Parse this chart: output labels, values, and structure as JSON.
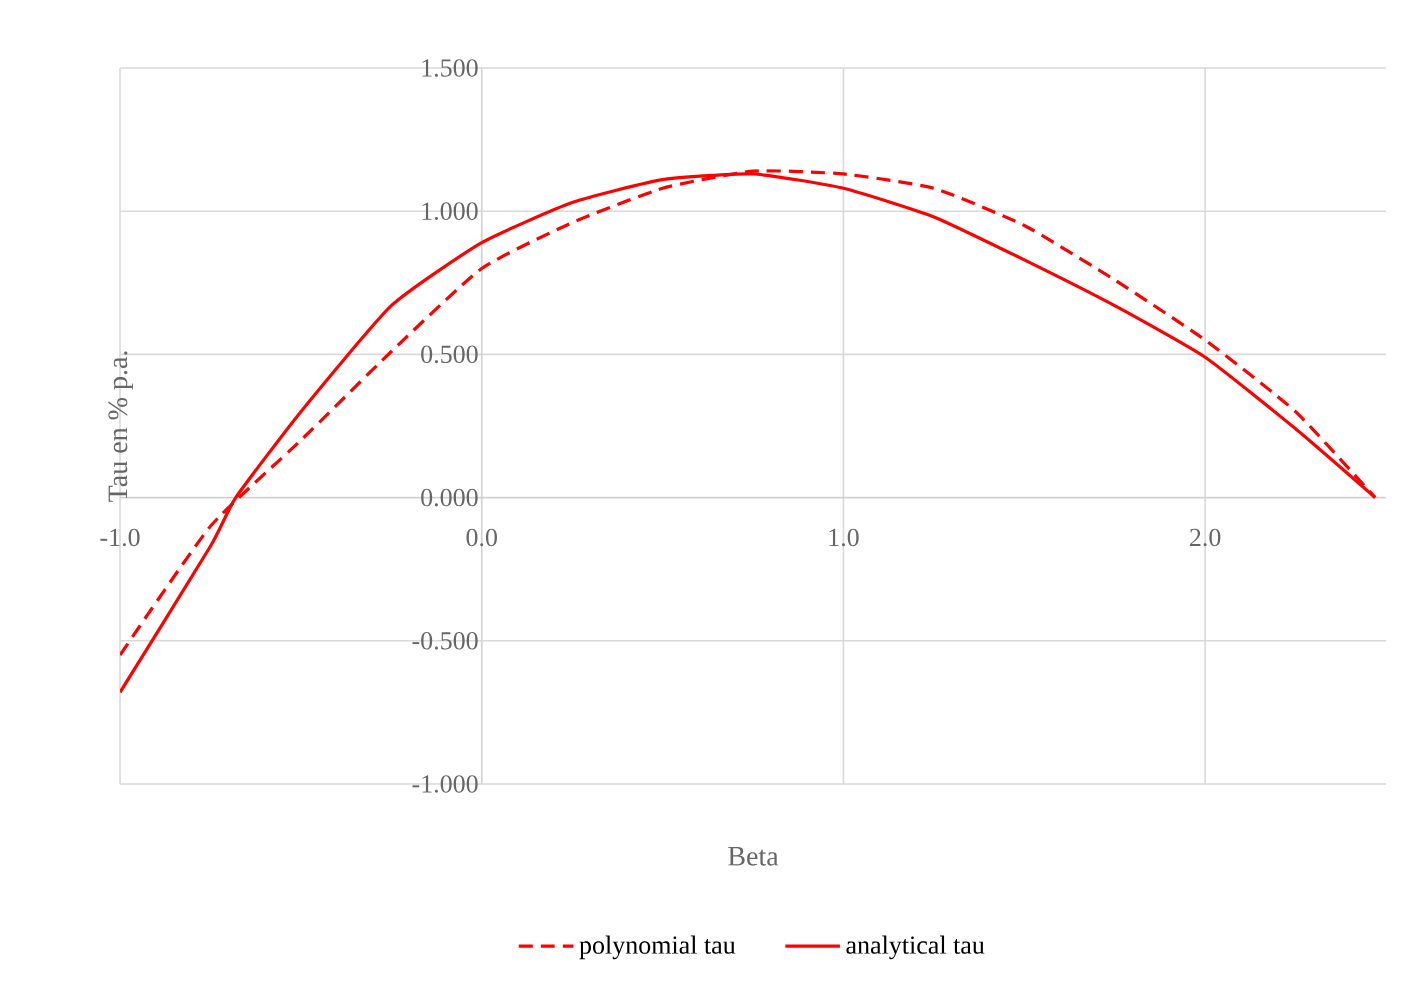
{
  "chart_data": {
    "type": "line",
    "xlabel": "Beta",
    "ylabel": "Tau en % p.a.",
    "xlim": [
      -1,
      2.5
    ],
    "ylim": [
      -1,
      1.5
    ],
    "xticks": [
      {
        "value": -1,
        "label": "-1.0"
      },
      {
        "value": 0,
        "label": "0.0"
      },
      {
        "value": 1,
        "label": "1.0"
      },
      {
        "value": 2,
        "label": "2.0"
      }
    ],
    "yticks": [
      {
        "value": -1,
        "label": "-1.000"
      },
      {
        "value": -0.5,
        "label": "-0.500"
      },
      {
        "value": 0,
        "label": "0.000"
      },
      {
        "value": 0.5,
        "label": "0.500"
      },
      {
        "value": 1,
        "label": "1.000"
      },
      {
        "value": 1.5,
        "label": "1.500"
      }
    ],
    "grid": true,
    "legend": "bottom",
    "marker": "none",
    "series": [
      {
        "name": "polynomial tau",
        "color": "#ff0000",
        "line_style": "dashed",
        "x": [
          -1,
          -0.75,
          -0.5,
          -0.25,
          0,
          0.25,
          0.5,
          0.75,
          1,
          1.25,
          1.5,
          1.75,
          2,
          2.25,
          2.47
        ],
        "values": [
          -0.55,
          -0.1,
          0.2,
          0.51,
          0.8,
          0.96,
          1.08,
          1.14,
          1.13,
          1.08,
          0.95,
          0.76,
          0.55,
          0.3,
          0
        ]
      },
      {
        "name": "analytical tau",
        "color": "#ff0000",
        "line_style": "solid",
        "x": [
          -1,
          -0.75,
          -0.68,
          -0.5,
          -0.25,
          0,
          0.25,
          0.5,
          0.75,
          1,
          1.25,
          1.5,
          1.75,
          2,
          2.25,
          2.47
        ],
        "values": [
          -0.68,
          -0.17,
          0,
          0.3,
          0.67,
          0.89,
          1.03,
          1.11,
          1.13,
          1.08,
          0.98,
          0.83,
          0.67,
          0.49,
          0.24,
          0
        ]
      }
    ]
  }
}
